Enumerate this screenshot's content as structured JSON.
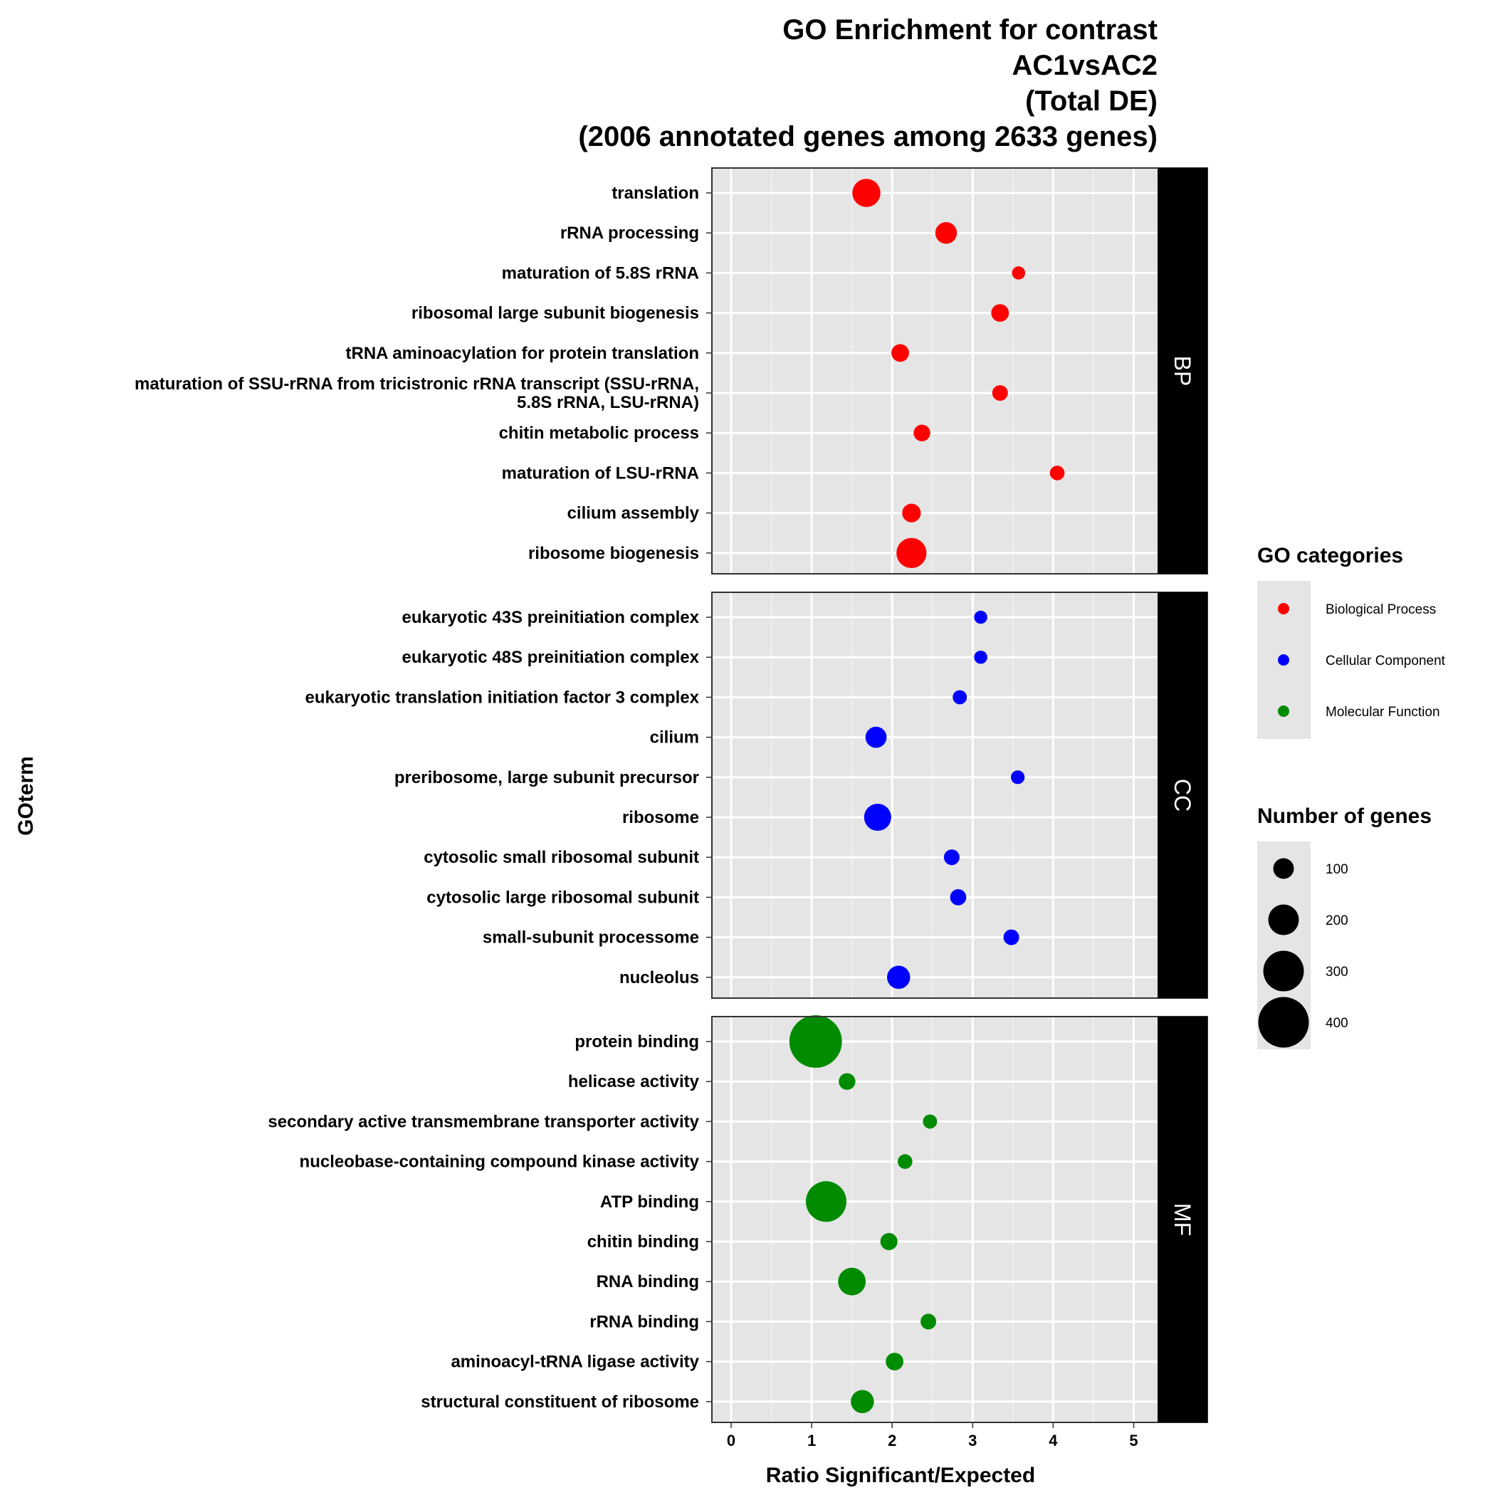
{
  "chart_data": {
    "type": "scatter",
    "title": [
      "GO Enrichment for contrast",
      "AC1vsAC2",
      "(Total DE)",
      "(2006 annotated genes among 2633 genes)"
    ],
    "xlabel": "Ratio Significant/Expected",
    "ylabel": "GOterm",
    "xlim": [
      -0.2,
      5.3
    ],
    "xticks": [
      "0",
      "1",
      "2",
      "3",
      "4",
      "5"
    ],
    "grid": true,
    "legend_position": "right",
    "colors": {
      "BP": "#ff0000",
      "CC": "#0000ff",
      "MF": "#008b00"
    },
    "color_legend": {
      "title": "GO categories",
      "entries": [
        {
          "key": "BP",
          "label": "Biological Process"
        },
        {
          "key": "CC",
          "label": "Cellular Component"
        },
        {
          "key": "MF",
          "label": "Molecular Function"
        }
      ]
    },
    "size_legend": {
      "title": "Number of genes",
      "entries": [
        {
          "value": 100,
          "label": "100"
        },
        {
          "value": 200,
          "label": "200"
        },
        {
          "value": 300,
          "label": "300"
        },
        {
          "value": 400,
          "label": "400"
        }
      ]
    },
    "panels": [
      {
        "strip": "BP",
        "terms": [
          {
            "label": [
              "translation"
            ],
            "x": 1.68,
            "genes": 175
          },
          {
            "label": [
              "rRNA processing"
            ],
            "x": 2.67,
            "genes": 110
          },
          {
            "label": [
              "maturation of 5.8S rRNA"
            ],
            "x": 3.57,
            "genes": 25
          },
          {
            "label": [
              "ribosomal large subunit biogenesis"
            ],
            "x": 3.34,
            "genes": 70
          },
          {
            "label": [
              "tRNA aminoacylation for protein translation"
            ],
            "x": 2.1,
            "genes": 70
          },
          {
            "label": [
              "maturation of SSU-rRNA from tricistronic rRNA transcript (SSU-rRNA,",
              "5.8S rRNA, LSU-rRNA)"
            ],
            "x": 3.34,
            "genes": 50
          },
          {
            "label": [
              "chitin metabolic process"
            ],
            "x": 2.37,
            "genes": 60
          },
          {
            "label": [
              "maturation of LSU-rRNA"
            ],
            "x": 4.05,
            "genes": 40
          },
          {
            "label": [
              "cilium assembly"
            ],
            "x": 2.24,
            "genes": 80
          },
          {
            "label": [
              "ribosome biogenesis"
            ],
            "x": 2.24,
            "genes": 195
          }
        ]
      },
      {
        "strip": "CC",
        "terms": [
          {
            "label": [
              "eukaryotic 43S preinitiation complex"
            ],
            "x": 3.1,
            "genes": 25
          },
          {
            "label": [
              "eukaryotic 48S preinitiation complex"
            ],
            "x": 3.1,
            "genes": 25
          },
          {
            "label": [
              "eukaryotic translation initiation factor 3 complex"
            ],
            "x": 2.84,
            "genes": 35
          },
          {
            "label": [
              "cilium"
            ],
            "x": 1.8,
            "genes": 105
          },
          {
            "label": [
              "preribosome, large subunit precursor"
            ],
            "x": 3.56,
            "genes": 30
          },
          {
            "label": [
              "ribosome"
            ],
            "x": 1.82,
            "genes": 165
          },
          {
            "label": [
              "cytosolic small ribosomal subunit"
            ],
            "x": 2.74,
            "genes": 50
          },
          {
            "label": [
              "cytosolic large ribosomal subunit"
            ],
            "x": 2.82,
            "genes": 55
          },
          {
            "label": [
              "small-subunit processome"
            ],
            "x": 3.48,
            "genes": 50
          },
          {
            "label": [
              "nucleolus"
            ],
            "x": 2.08,
            "genes": 125
          }
        ]
      },
      {
        "strip": "MF",
        "terms": [
          {
            "label": [
              "protein binding"
            ],
            "x": 1.05,
            "genes": 420
          },
          {
            "label": [
              "helicase activity"
            ],
            "x": 1.44,
            "genes": 60
          },
          {
            "label": [
              "secondary active transmembrane transporter activity"
            ],
            "x": 2.47,
            "genes": 35
          },
          {
            "label": [
              "nucleobase-containing compound kinase activity"
            ],
            "x": 2.16,
            "genes": 40
          },
          {
            "label": [
              "ATP binding"
            ],
            "x": 1.18,
            "genes": 300
          },
          {
            "label": [
              "chitin binding"
            ],
            "x": 1.96,
            "genes": 65
          },
          {
            "label": [
              "RNA binding"
            ],
            "x": 1.5,
            "genes": 170
          },
          {
            "label": [
              "rRNA binding"
            ],
            "x": 2.45,
            "genes": 50
          },
          {
            "label": [
              "aminoacyl-tRNA ligase activity"
            ],
            "x": 2.03,
            "genes": 70
          },
          {
            "label": [
              "structural constituent of ribosome"
            ],
            "x": 1.63,
            "genes": 125
          }
        ]
      }
    ]
  }
}
